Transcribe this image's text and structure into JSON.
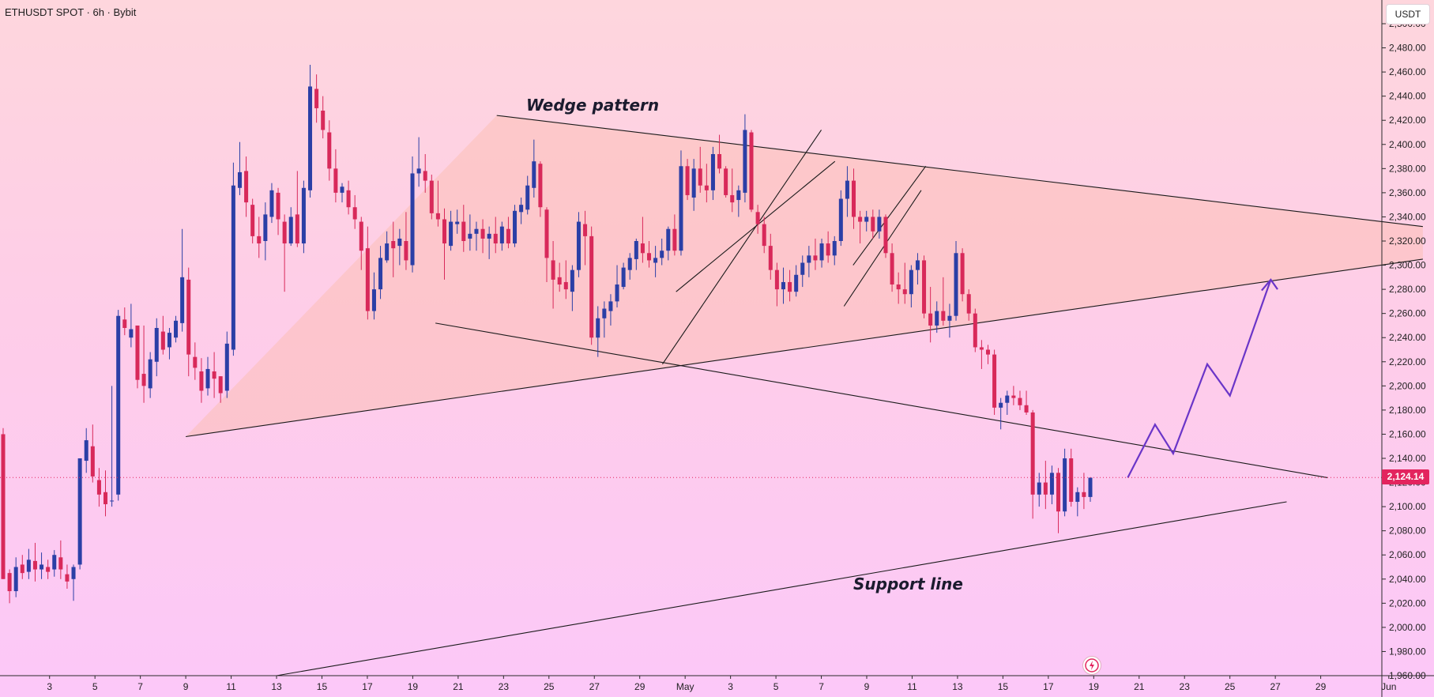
{
  "header": {
    "symbol_line": "ETHUSDT SPOT · 6h · Bybit",
    "currency": "USDT"
  },
  "last_price": {
    "value": 2124.14,
    "label": "2,124.14",
    "color": "#e3245e"
  },
  "colors": {
    "up": "#2b3fa6",
    "down": "#d8295a",
    "projection": "#6a35c8",
    "wedge_fill": "#fbbfb7"
  },
  "annotations": {
    "wedge": "Wedge pattern",
    "support": "Support line"
  },
  "icons": {
    "alert": "lightning-alert-icon"
  },
  "chart_data": {
    "type": "candlestick",
    "ylim": [
      1960,
      2500
    ],
    "ytick_values": [
      1960,
      1980,
      2000,
      2020,
      2040,
      2060,
      2080,
      2100,
      2120,
      2140,
      2160,
      2180,
      2200,
      2220,
      2240,
      2260,
      2280,
      2300,
      2320,
      2340,
      2360,
      2380,
      2400,
      2420,
      2440,
      2460,
      2480,
      2500
    ],
    "ytick_labels": [
      "1,960.00",
      "1,980.00",
      "2,000.00",
      "2,020.00",
      "2,040.00",
      "2,060.00",
      "2,080.00",
      "2,100.00",
      "2,120.00",
      "2,140.00",
      "2,160.00",
      "2,180.00",
      "2,200.00",
      "2,220.00",
      "2,240.00",
      "2,260.00",
      "2,280.00",
      "2,300.00",
      "2,320.00",
      "2,340.00",
      "2,360.00",
      "2,380.00",
      "2,400.00",
      "2,420.00",
      "2,440.00",
      "2,460.00",
      "2,480.00",
      "2,500.00"
    ],
    "x_domain": [
      0,
      61.5
    ],
    "xticks": [
      {
        "d": 1,
        "label": "3"
      },
      {
        "d": 3,
        "label": "5"
      },
      {
        "d": 5,
        "label": "7"
      },
      {
        "d": 7,
        "label": "9"
      },
      {
        "d": 9,
        "label": "11"
      },
      {
        "d": 11,
        "label": "13"
      },
      {
        "d": 13,
        "label": "15"
      },
      {
        "d": 15,
        "label": "17"
      },
      {
        "d": 17,
        "label": "19"
      },
      {
        "d": 19,
        "label": "21"
      },
      {
        "d": 21,
        "label": "23"
      },
      {
        "d": 23,
        "label": "25"
      },
      {
        "d": 25,
        "label": "27"
      },
      {
        "d": 27,
        "label": "29"
      },
      {
        "d": 29,
        "label": "May"
      },
      {
        "d": 31,
        "label": "3"
      },
      {
        "d": 33,
        "label": "5"
      },
      {
        "d": 35,
        "label": "7"
      },
      {
        "d": 37,
        "label": "9"
      },
      {
        "d": 39,
        "label": "11"
      },
      {
        "d": 41,
        "label": "13"
      },
      {
        "d": 43,
        "label": "15"
      },
      {
        "d": 45,
        "label": "17"
      },
      {
        "d": 47,
        "label": "19"
      },
      {
        "d": 49,
        "label": "21"
      },
      {
        "d": 51,
        "label": "23"
      },
      {
        "d": 53,
        "label": "25"
      },
      {
        "d": 55,
        "label": "27"
      },
      {
        "d": 57,
        "label": "29"
      },
      {
        "d": 60,
        "label": "Jun"
      }
    ],
    "candles": [
      [
        2160,
        2165,
        2040,
        2040
      ],
      [
        2045,
        2048,
        2020,
        2030
      ],
      [
        2030,
        2058,
        2025,
        2050
      ],
      [
        2052,
        2060,
        2040,
        2045
      ],
      [
        2046,
        2065,
        2040,
        2056
      ],
      [
        2055,
        2070,
        2038,
        2048
      ],
      [
        2048,
        2062,
        2040,
        2052
      ],
      [
        2050,
        2056,
        2040,
        2046
      ],
      [
        2048,
        2064,
        2042,
        2060
      ],
      [
        2058,
        2072,
        2040,
        2048
      ],
      [
        2044,
        2052,
        2032,
        2038
      ],
      [
        2040,
        2052,
        2022,
        2050
      ],
      [
        2052,
        2140,
        2048,
        2140
      ],
      [
        2138,
        2165,
        2128,
        2155
      ],
      [
        2150,
        2168,
        2120,
        2125
      ],
      [
        2122,
        2132,
        2100,
        2110
      ],
      [
        2112,
        2130,
        2092,
        2102
      ],
      [
        2105,
        2200,
        2100,
        2105
      ],
      [
        2110,
        2263,
        2105,
        2258
      ],
      [
        2255,
        2265,
        2242,
        2248
      ],
      [
        2240,
        2268,
        2232,
        2247
      ],
      [
        2250,
        2245,
        2198,
        2205
      ],
      [
        2210,
        2250,
        2186,
        2200
      ],
      [
        2198,
        2228,
        2190,
        2222
      ],
      [
        2220,
        2256,
        2208,
        2248
      ],
      [
        2245,
        2258,
        2226,
        2230
      ],
      [
        2232,
        2248,
        2222,
        2244
      ],
      [
        2240,
        2258,
        2236,
        2254
      ],
      [
        2252,
        2330,
        2245,
        2290
      ],
      [
        2288,
        2298,
        2208,
        2226
      ],
      [
        2224,
        2236,
        2205,
        2215
      ],
      [
        2212,
        2223,
        2186,
        2196
      ],
      [
        2198,
        2224,
        2192,
        2214
      ],
      [
        2212,
        2228,
        2190,
        2206
      ],
      [
        2208,
        2208,
        2186,
        2194
      ],
      [
        2196,
        2245,
        2190,
        2235
      ],
      [
        2230,
        2385,
        2225,
        2366
      ],
      [
        2364,
        2402,
        2358,
        2377
      ],
      [
        2378,
        2390,
        2340,
        2352
      ],
      [
        2350,
        2355,
        2318,
        2324
      ],
      [
        2324,
        2340,
        2306,
        2318
      ],
      [
        2320,
        2352,
        2304,
        2342
      ],
      [
        2340,
        2368,
        2335,
        2362
      ],
      [
        2360,
        2364,
        2325,
        2338
      ],
      [
        2336,
        2342,
        2278,
        2318
      ],
      [
        2318,
        2348,
        2316,
        2340
      ],
      [
        2342,
        2378,
        2315,
        2318
      ],
      [
        2318,
        2370,
        2310,
        2364
      ],
      [
        2362,
        2466,
        2356,
        2448
      ],
      [
        2446,
        2458,
        2418,
        2430
      ],
      [
        2428,
        2440,
        2405,
        2412
      ],
      [
        2410,
        2420,
        2370,
        2380
      ],
      [
        2380,
        2396,
        2352,
        2360
      ],
      [
        2360,
        2368,
        2352,
        2365
      ],
      [
        2362,
        2370,
        2342,
        2348
      ],
      [
        2348,
        2358,
        2330,
        2338
      ],
      [
        2336,
        2340,
        2296,
        2312
      ],
      [
        2314,
        2332,
        2255,
        2262
      ],
      [
        2262,
        2294,
        2255,
        2280
      ],
      [
        2280,
        2316,
        2272,
        2306
      ],
      [
        2304,
        2328,
        2302,
        2318
      ],
      [
        2320,
        2336,
        2290,
        2314
      ],
      [
        2316,
        2330,
        2300,
        2322
      ],
      [
        2320,
        2344,
        2296,
        2304
      ],
      [
        2300,
        2390,
        2294,
        2376
      ],
      [
        2376,
        2406,
        2365,
        2380
      ],
      [
        2378,
        2392,
        2360,
        2370
      ],
      [
        2370,
        2375,
        2338,
        2343
      ],
      [
        2343,
        2370,
        2332,
        2338
      ],
      [
        2338,
        2347,
        2288,
        2318
      ],
      [
        2316,
        2345,
        2312,
        2336
      ],
      [
        2334,
        2346,
        2326,
        2336
      ],
      [
        2336,
        2350,
        2311,
        2320
      ],
      [
        2322,
        2342,
        2312,
        2326
      ],
      [
        2326,
        2336,
        2312,
        2330
      ],
      [
        2330,
        2338,
        2310,
        2322
      ],
      [
        2322,
        2332,
        2305,
        2326
      ],
      [
        2326,
        2340,
        2310,
        2318
      ],
      [
        2318,
        2336,
        2312,
        2332
      ],
      [
        2330,
        2340,
        2314,
        2318
      ],
      [
        2318,
        2350,
        2315,
        2345
      ],
      [
        2344,
        2356,
        2334,
        2350
      ],
      [
        2346,
        2374,
        2342,
        2366
      ],
      [
        2364,
        2404,
        2356,
        2386
      ],
      [
        2384,
        2386,
        2340,
        2348
      ],
      [
        2346,
        2348,
        2286,
        2306
      ],
      [
        2304,
        2320,
        2264,
        2288
      ],
      [
        2290,
        2302,
        2278,
        2284
      ],
      [
        2286,
        2304,
        2272,
        2280
      ],
      [
        2278,
        2300,
        2262,
        2296
      ],
      [
        2296,
        2344,
        2290,
        2336
      ],
      [
        2334,
        2345,
        2300,
        2324
      ],
      [
        2324,
        2332,
        2234,
        2240
      ],
      [
        2240,
        2266,
        2224,
        2256
      ],
      [
        2256,
        2270,
        2240,
        2264
      ],
      [
        2262,
        2276,
        2250,
        2270
      ],
      [
        2270,
        2300,
        2265,
        2284
      ],
      [
        2282,
        2302,
        2280,
        2298
      ],
      [
        2296,
        2310,
        2288,
        2306
      ],
      [
        2305,
        2322,
        2296,
        2320
      ],
      [
        2318,
        2340,
        2302,
        2310
      ],
      [
        2310,
        2320,
        2298,
        2304
      ],
      [
        2302,
        2316,
        2290,
        2306
      ],
      [
        2306,
        2322,
        2300,
        2312
      ],
      [
        2312,
        2332,
        2304,
        2330
      ],
      [
        2330,
        2342,
        2308,
        2312
      ],
      [
        2312,
        2395,
        2308,
        2382
      ],
      [
        2382,
        2388,
        2354,
        2358
      ],
      [
        2356,
        2388,
        2345,
        2380
      ],
      [
        2380,
        2398,
        2360,
        2366
      ],
      [
        2366,
        2384,
        2352,
        2362
      ],
      [
        2362,
        2398,
        2354,
        2392
      ],
      [
        2392,
        2408,
        2376,
        2380
      ],
      [
        2380,
        2382,
        2356,
        2358
      ],
      [
        2358,
        2380,
        2344,
        2352
      ],
      [
        2354,
        2366,
        2340,
        2362
      ],
      [
        2360,
        2425,
        2352,
        2412
      ],
      [
        2410,
        2412,
        2344,
        2346
      ],
      [
        2344,
        2350,
        2326,
        2334
      ],
      [
        2334,
        2340,
        2310,
        2316
      ],
      [
        2316,
        2326,
        2288,
        2296
      ],
      [
        2296,
        2302,
        2266,
        2280
      ],
      [
        2280,
        2298,
        2268,
        2286
      ],
      [
        2286,
        2296,
        2270,
        2278
      ],
      [
        2278,
        2300,
        2274,
        2292
      ],
      [
        2292,
        2308,
        2282,
        2302
      ],
      [
        2302,
        2316,
        2290,
        2308
      ],
      [
        2308,
        2322,
        2296,
        2304
      ],
      [
        2304,
        2322,
        2298,
        2318
      ],
      [
        2318,
        2328,
        2302,
        2308
      ],
      [
        2308,
        2324,
        2300,
        2320
      ],
      [
        2320,
        2362,
        2316,
        2355
      ],
      [
        2355,
        2382,
        2340,
        2370
      ],
      [
        2370,
        2380,
        2330,
        2340
      ],
      [
        2340,
        2345,
        2318,
        2336
      ],
      [
        2336,
        2345,
        2328,
        2340
      ],
      [
        2340,
        2346,
        2322,
        2328
      ],
      [
        2328,
        2346,
        2322,
        2340
      ],
      [
        2340,
        2342,
        2306,
        2310
      ],
      [
        2310,
        2318,
        2278,
        2284
      ],
      [
        2284,
        2294,
        2268,
        2280
      ],
      [
        2280,
        2302,
        2268,
        2276
      ],
      [
        2276,
        2300,
        2265,
        2296
      ],
      [
        2296,
        2310,
        2284,
        2304
      ],
      [
        2304,
        2308,
        2256,
        2260
      ],
      [
        2260,
        2282,
        2236,
        2250
      ],
      [
        2250,
        2270,
        2244,
        2262
      ],
      [
        2262,
        2290,
        2250,
        2254
      ],
      [
        2254,
        2268,
        2240,
        2258
      ],
      [
        2258,
        2320,
        2254,
        2310
      ],
      [
        2310,
        2314,
        2270,
        2276
      ],
      [
        2276,
        2280,
        2254,
        2260
      ],
      [
        2260,
        2264,
        2228,
        2232
      ],
      [
        2232,
        2238,
        2214,
        2230
      ],
      [
        2230,
        2234,
        2218,
        2226
      ],
      [
        2226,
        2230,
        2176,
        2182
      ],
      [
        2182,
        2190,
        2164,
        2186
      ],
      [
        2186,
        2196,
        2176,
        2192
      ],
      [
        2192,
        2200,
        2184,
        2190
      ],
      [
        2190,
        2196,
        2180,
        2184
      ],
      [
        2184,
        2196,
        2176,
        2178
      ],
      [
        2178,
        2180,
        2090,
        2110
      ],
      [
        2110,
        2128,
        2100,
        2120
      ],
      [
        2120,
        2138,
        2098,
        2110
      ],
      [
        2110,
        2134,
        2102,
        2128
      ],
      [
        2128,
        2132,
        2078,
        2096
      ],
      [
        2096,
        2148,
        2092,
        2140
      ],
      [
        2140,
        2148,
        2100,
        2104
      ],
      [
        2104,
        2116,
        2092,
        2112
      ],
      [
        2112,
        2128,
        2098,
        2108
      ],
      [
        2108,
        2122,
        2104,
        2124
      ]
    ],
    "wedge_upper_line": [
      [
        20.7,
        2424
      ],
      [
        61.5,
        2332
      ]
    ],
    "wedge_lower_line": [
      [
        7,
        2158
      ],
      [
        61.5,
        2305
      ]
    ],
    "wedge_fill_polygon": [
      [
        7,
        2158
      ],
      [
        20.7,
        2424
      ],
      [
        61.5,
        2332
      ],
      [
        61.5,
        2305
      ]
    ],
    "descending_line": [
      [
        18,
        2252
      ],
      [
        57.3,
        2124
      ]
    ],
    "support_line": [
      [
        11,
        1960
      ],
      [
        55.5,
        2104
      ]
    ],
    "channel_1": [
      [
        [
          28,
          2218
        ],
        [
          35,
          2412
        ]
      ],
      [
        [
          28.6,
          2278
        ],
        [
          35.6,
          2386
        ]
      ]
    ],
    "channel_2": [
      [
        [
          36,
          2266
        ],
        [
          39.4,
          2362
        ]
      ],
      [
        [
          36.4,
          2300
        ],
        [
          39.6,
          2382
        ]
      ]
    ],
    "projection_path": [
      [
        48.5,
        2124
      ],
      [
        49.7,
        2168
      ],
      [
        50.5,
        2144
      ],
      [
        52,
        2218
      ],
      [
        53,
        2192
      ],
      [
        54.8,
        2288
      ]
    ],
    "projection_arrowhead": [
      [
        54.4,
        2279
      ],
      [
        54.8,
        2288
      ],
      [
        55.1,
        2280
      ]
    ]
  }
}
